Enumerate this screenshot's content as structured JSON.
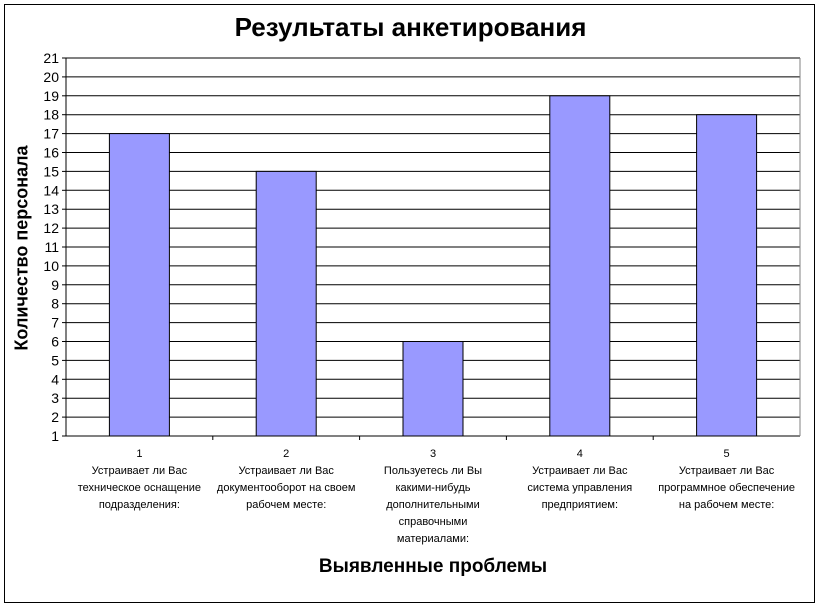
{
  "chart_data": {
    "type": "bar",
    "title": "Результаты анкетирования",
    "xlabel": "Выявленные проблемы",
    "ylabel": "Количество персонала",
    "categories": [
      "1",
      "2",
      "3",
      "4",
      "5"
    ],
    "category_descriptions": [
      "Устраивает ли Вас техническое оснащение подразделения:",
      "Устраивает ли Вас документооборот на своем рабочем месте:",
      "Пользуетесь ли Вы какими-нибудь дополнительными справочными материалами:",
      "Устраивает ли Вас система управления предприятием:",
      "Устраивает ли Вас программное обеспечение на рабочем месте:"
    ],
    "values": [
      17,
      15,
      6,
      19,
      18
    ],
    "ylim": [
      1,
      21
    ],
    "yticks": [
      1,
      2,
      3,
      4,
      5,
      6,
      7,
      8,
      9,
      10,
      11,
      12,
      13,
      14,
      15,
      16,
      17,
      18,
      19,
      20,
      21
    ],
    "grid": true,
    "legend": "none",
    "colors": {
      "bar_fill": "#9999ff",
      "bar_stroke": "#000000",
      "grid": "#000000"
    }
  }
}
